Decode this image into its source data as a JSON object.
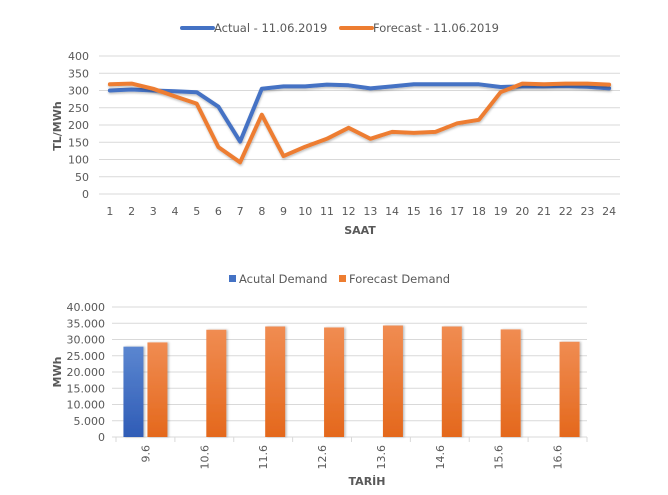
{
  "chart_data": [
    {
      "type": "line",
      "title": "",
      "xlabel": "SAAT",
      "ylabel": "TL/MWh",
      "ylim": [
        0,
        400
      ],
      "yticks": [
        "0",
        "50",
        "100",
        "150",
        "200",
        "250",
        "300",
        "350",
        "400"
      ],
      "ytick_values": [
        0,
        50,
        100,
        150,
        200,
        250,
        300,
        350,
        400
      ],
      "categories": [
        "1",
        "2",
        "3",
        "4",
        "5",
        "6",
        "7",
        "8",
        "9",
        "10",
        "11",
        "12",
        "13",
        "14",
        "15",
        "16",
        "17",
        "18",
        "19",
        "20",
        "21",
        "22",
        "23",
        "24"
      ],
      "grid": true,
      "legend_position": "top",
      "series": [
        {
          "name": "Actual - 11.06.2019",
          "color": "#4472c4",
          "values": [
            300,
            303,
            300,
            298,
            295,
            253,
            152,
            305,
            312,
            312,
            317,
            315,
            306,
            312,
            318,
            318,
            318,
            318,
            310,
            312,
            312,
            313,
            311,
            306
          ]
        },
        {
          "name": "Forecast - 11.06.2019",
          "color": "#ed7d31",
          "values": [
            318,
            320,
            305,
            283,
            262,
            136,
            92,
            230,
            110,
            137,
            160,
            192,
            160,
            180,
            177,
            180,
            205,
            215,
            295,
            320,
            318,
            320,
            320,
            317
          ]
        }
      ]
    },
    {
      "type": "bar",
      "title": "",
      "xlabel": "TARİH",
      "ylabel": "MWh",
      "ylim": [
        0,
        40000
      ],
      "yticks": [
        "0",
        "5.000",
        "10.000",
        "15.000",
        "20.000",
        "25.000",
        "30.000",
        "35.000",
        "40.000"
      ],
      "ytick_values": [
        0,
        5000,
        10000,
        15000,
        20000,
        25000,
        30000,
        35000,
        40000
      ],
      "categories": [
        "9.6",
        "10.6",
        "11.6",
        "12.6",
        "13.6",
        "14.6",
        "15.6",
        "16.6"
      ],
      "grid": true,
      "legend_position": "top",
      "series": [
        {
          "name": "Acutal Demand",
          "color": "#4472c4",
          "values": [
            27800,
            null,
            null,
            null,
            null,
            null,
            null,
            null
          ]
        },
        {
          "name": "Forecast Demand",
          "color": "#ed7d31",
          "values": [
            29100,
            33000,
            34000,
            33700,
            34300,
            34000,
            33100,
            29300
          ]
        }
      ]
    }
  ]
}
